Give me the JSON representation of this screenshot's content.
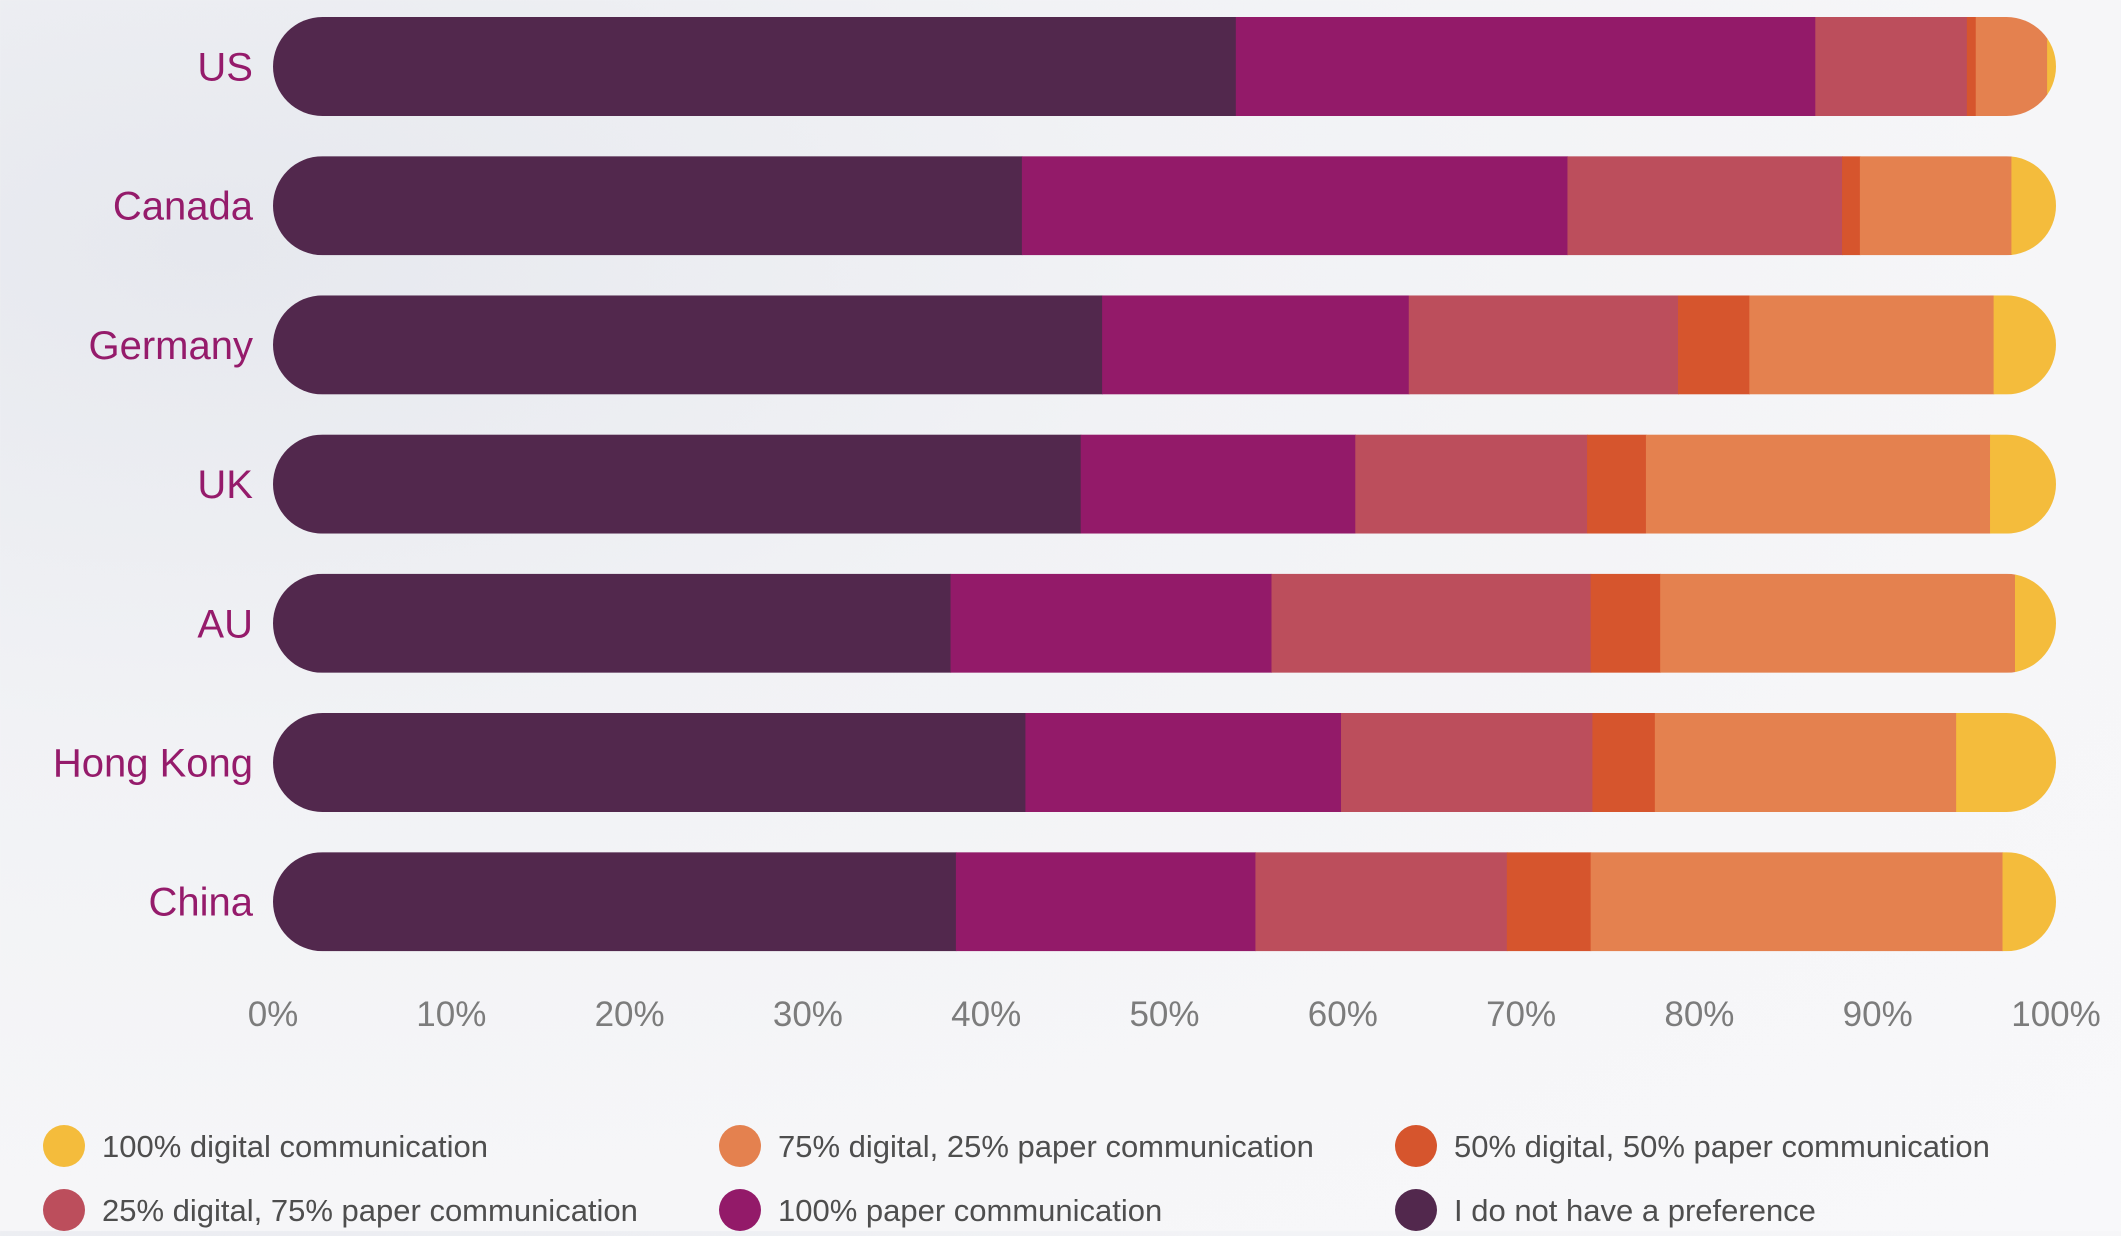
{
  "chart_data": {
    "type": "bar",
    "orientation": "horizontal",
    "stacked": true,
    "categories": [
      "US",
      "Canada",
      "Germany",
      "UK",
      "AU",
      "Hong Kong",
      "China"
    ],
    "xlim": [
      0,
      100
    ],
    "x_ticks": [
      "0%",
      "10%",
      "20%",
      "30%",
      "40%",
      "50%",
      "60%",
      "70%",
      "80%",
      "90%",
      "100%"
    ],
    "grid": false,
    "legend_position": "bottom",
    "series": [
      {
        "name": "I do not have a preference",
        "color": "#52284D",
        "values": [
          54,
          42,
          46.5,
          45.3,
          38,
          42.2,
          38.3
        ]
      },
      {
        "name": "100% paper communication",
        "color": "#931A69",
        "values": [
          32.5,
          30.6,
          17.2,
          15.4,
          18,
          17.7,
          16.8
        ]
      },
      {
        "name": "25% digital, 75% paper communication",
        "color": "#BC4E5C",
        "values": [
          8.5,
          15.4,
          15.1,
          13,
          17.9,
          14.1,
          14.1
        ]
      },
      {
        "name": "50% digital, 50% paper communication",
        "color": "#D6552D",
        "values": [
          0.5,
          1,
          4,
          3.3,
          3.9,
          3.5,
          4.7
        ]
      },
      {
        "name": "75% digital, 25% paper communication",
        "color": "#E4814F",
        "values": [
          4,
          8.5,
          13.7,
          19.3,
          19.9,
          16.9,
          23.1
        ]
      },
      {
        "name": "100% digital communication",
        "color": "#F4BC3C",
        "values": [
          0.5,
          2.5,
          3.5,
          3.7,
          2.3,
          5.6,
          3
        ]
      }
    ],
    "legend_order": [
      "100% digital communication",
      "75% digital, 25% paper communication",
      "50% digital, 50% paper communication",
      "25% digital, 75% paper communication",
      "100% paper communication",
      "I do not have a preference"
    ],
    "colors": {
      "label_text": "#951B6B",
      "tick_text": "#7C7C7C",
      "legend_text": "#4E4E4E"
    }
  }
}
